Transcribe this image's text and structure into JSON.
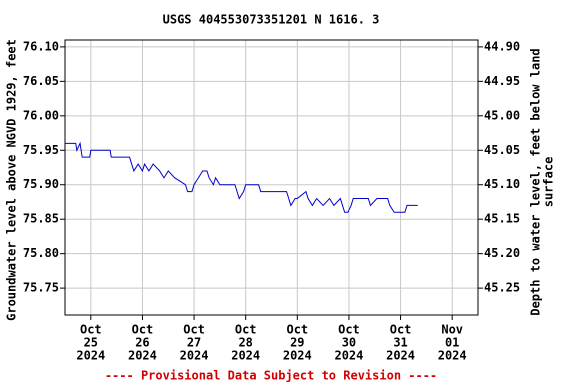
{
  "chart_data": {
    "type": "line",
    "title": "USGS 404553073351201 N  1616. 3",
    "ylabel": "Groundwater level above NGVD 1929, feet",
    "y2label": [
      "Depth to water level, feet below land",
      "surface"
    ],
    "footer": "---- Provisional Data Subject to Revision ----",
    "grid": true,
    "xlim": [
      "2024-10-24T12:00",
      "2024-11-01T12:00"
    ],
    "xticks": [
      {
        "value": "2024-10-25",
        "label": [
          "Oct",
          "25",
          "2024"
        ]
      },
      {
        "value": "2024-10-26",
        "label": [
          "Oct",
          "26",
          "2024"
        ]
      },
      {
        "value": "2024-10-27",
        "label": [
          "Oct",
          "27",
          "2024"
        ]
      },
      {
        "value": "2024-10-28",
        "label": [
          "Oct",
          "28",
          "2024"
        ]
      },
      {
        "value": "2024-10-29",
        "label": [
          "Oct",
          "29",
          "2024"
        ]
      },
      {
        "value": "2024-10-30",
        "label": [
          "Oct",
          "30",
          "2024"
        ]
      },
      {
        "value": "2024-10-31",
        "label": [
          "Oct",
          "31",
          "2024"
        ]
      },
      {
        "value": "2024-11-01",
        "label": [
          "Nov",
          "01",
          "2024"
        ]
      }
    ],
    "ylim": [
      75.711,
      76.11
    ],
    "yticks": [
      75.75,
      {
        "value": 75.8,
        "label": "75.80"
      },
      75.85,
      {
        "value": 75.9,
        "label": "75.90"
      },
      75.95,
      {
        "value": 76.0,
        "label": "76.00"
      },
      76.05,
      {
        "value": 76.1,
        "label": "76.10"
      }
    ],
    "y2lim": [
      45.289,
      44.89
    ],
    "y2ticks": [
      {
        "value": 44.9,
        "label": "44.90"
      },
      44.95,
      {
        "value": 45.0,
        "label": "45.00"
      },
      45.05,
      {
        "value": 45.1,
        "label": "45.10"
      },
      45.15,
      {
        "value": 45.2,
        "label": "45.20"
      },
      45.25
    ],
    "x": [
      "2024-10-24T12:00",
      "2024-10-24T17:00",
      "2024-10-24T17:30",
      "2024-10-24T19:00",
      "2024-10-24T20:00",
      "2024-10-24T23:30",
      "2024-10-25T00:00",
      "2024-10-25T09:00",
      "2024-10-25T09:30",
      "2024-10-25T18:00",
      "2024-10-25T19:00",
      "2024-10-25T20:00",
      "2024-10-25T22:00",
      "2024-10-26T00:00",
      "2024-10-26T01:00",
      "2024-10-26T03:00",
      "2024-10-26T05:00",
      "2024-10-26T08:00",
      "2024-10-26T10:00",
      "2024-10-26T12:00",
      "2024-10-26T15:00",
      "2024-10-26T20:00",
      "2024-10-26T21:00",
      "2024-10-26T23:00",
      "2024-10-27T00:00",
      "2024-10-27T02:00",
      "2024-10-27T04:00",
      "2024-10-27T06:00",
      "2024-10-27T07:00",
      "2024-10-27T09:00",
      "2024-10-27T10:00",
      "2024-10-27T12:00",
      "2024-10-27T19:00",
      "2024-10-27T20:00",
      "2024-10-27T21:00",
      "2024-10-27T23:00",
      "2024-10-28T00:00",
      "2024-10-28T06:00",
      "2024-10-28T07:00",
      "2024-10-28T19:00",
      "2024-10-28T20:00",
      "2024-10-28T21:00",
      "2024-10-28T23:00",
      "2024-10-29T00:00",
      "2024-10-29T04:00",
      "2024-10-29T05:00",
      "2024-10-29T07:00",
      "2024-10-29T09:00",
      "2024-10-29T12:00",
      "2024-10-29T15:00",
      "2024-10-29T17:00",
      "2024-10-29T20:00",
      "2024-10-29T22:00",
      "2024-10-29T23:30",
      "2024-10-30T01:00",
      "2024-10-30T02:00",
      "2024-10-30T09:00",
      "2024-10-30T10:00",
      "2024-10-30T13:00",
      "2024-10-30T18:00",
      "2024-10-30T19:00",
      "2024-10-30T21:00",
      "2024-10-31T00:00",
      "2024-10-31T02:00",
      "2024-10-31T03:00",
      "2024-10-31T08:00"
    ],
    "series": [
      {
        "color": "#0000cc",
        "values": [
          75.96,
          75.96,
          75.95,
          75.96,
          75.94,
          75.94,
          75.95,
          75.95,
          75.94,
          75.94,
          75.93,
          75.92,
          75.93,
          75.92,
          75.93,
          75.92,
          75.93,
          75.92,
          75.91,
          75.92,
          75.91,
          75.9,
          75.89,
          75.89,
          75.9,
          75.91,
          75.92,
          75.92,
          75.91,
          75.9,
          75.91,
          75.9,
          75.9,
          75.89,
          75.88,
          75.89,
          75.9,
          75.9,
          75.89,
          75.89,
          75.88,
          75.87,
          75.88,
          75.88,
          75.89,
          75.88,
          75.87,
          75.88,
          75.87,
          75.88,
          75.87,
          75.88,
          75.86,
          75.86,
          75.87,
          75.88,
          75.88,
          75.87,
          75.88,
          75.88,
          75.87,
          75.86,
          75.86,
          75.86,
          75.87,
          75.87
        ]
      }
    ]
  }
}
